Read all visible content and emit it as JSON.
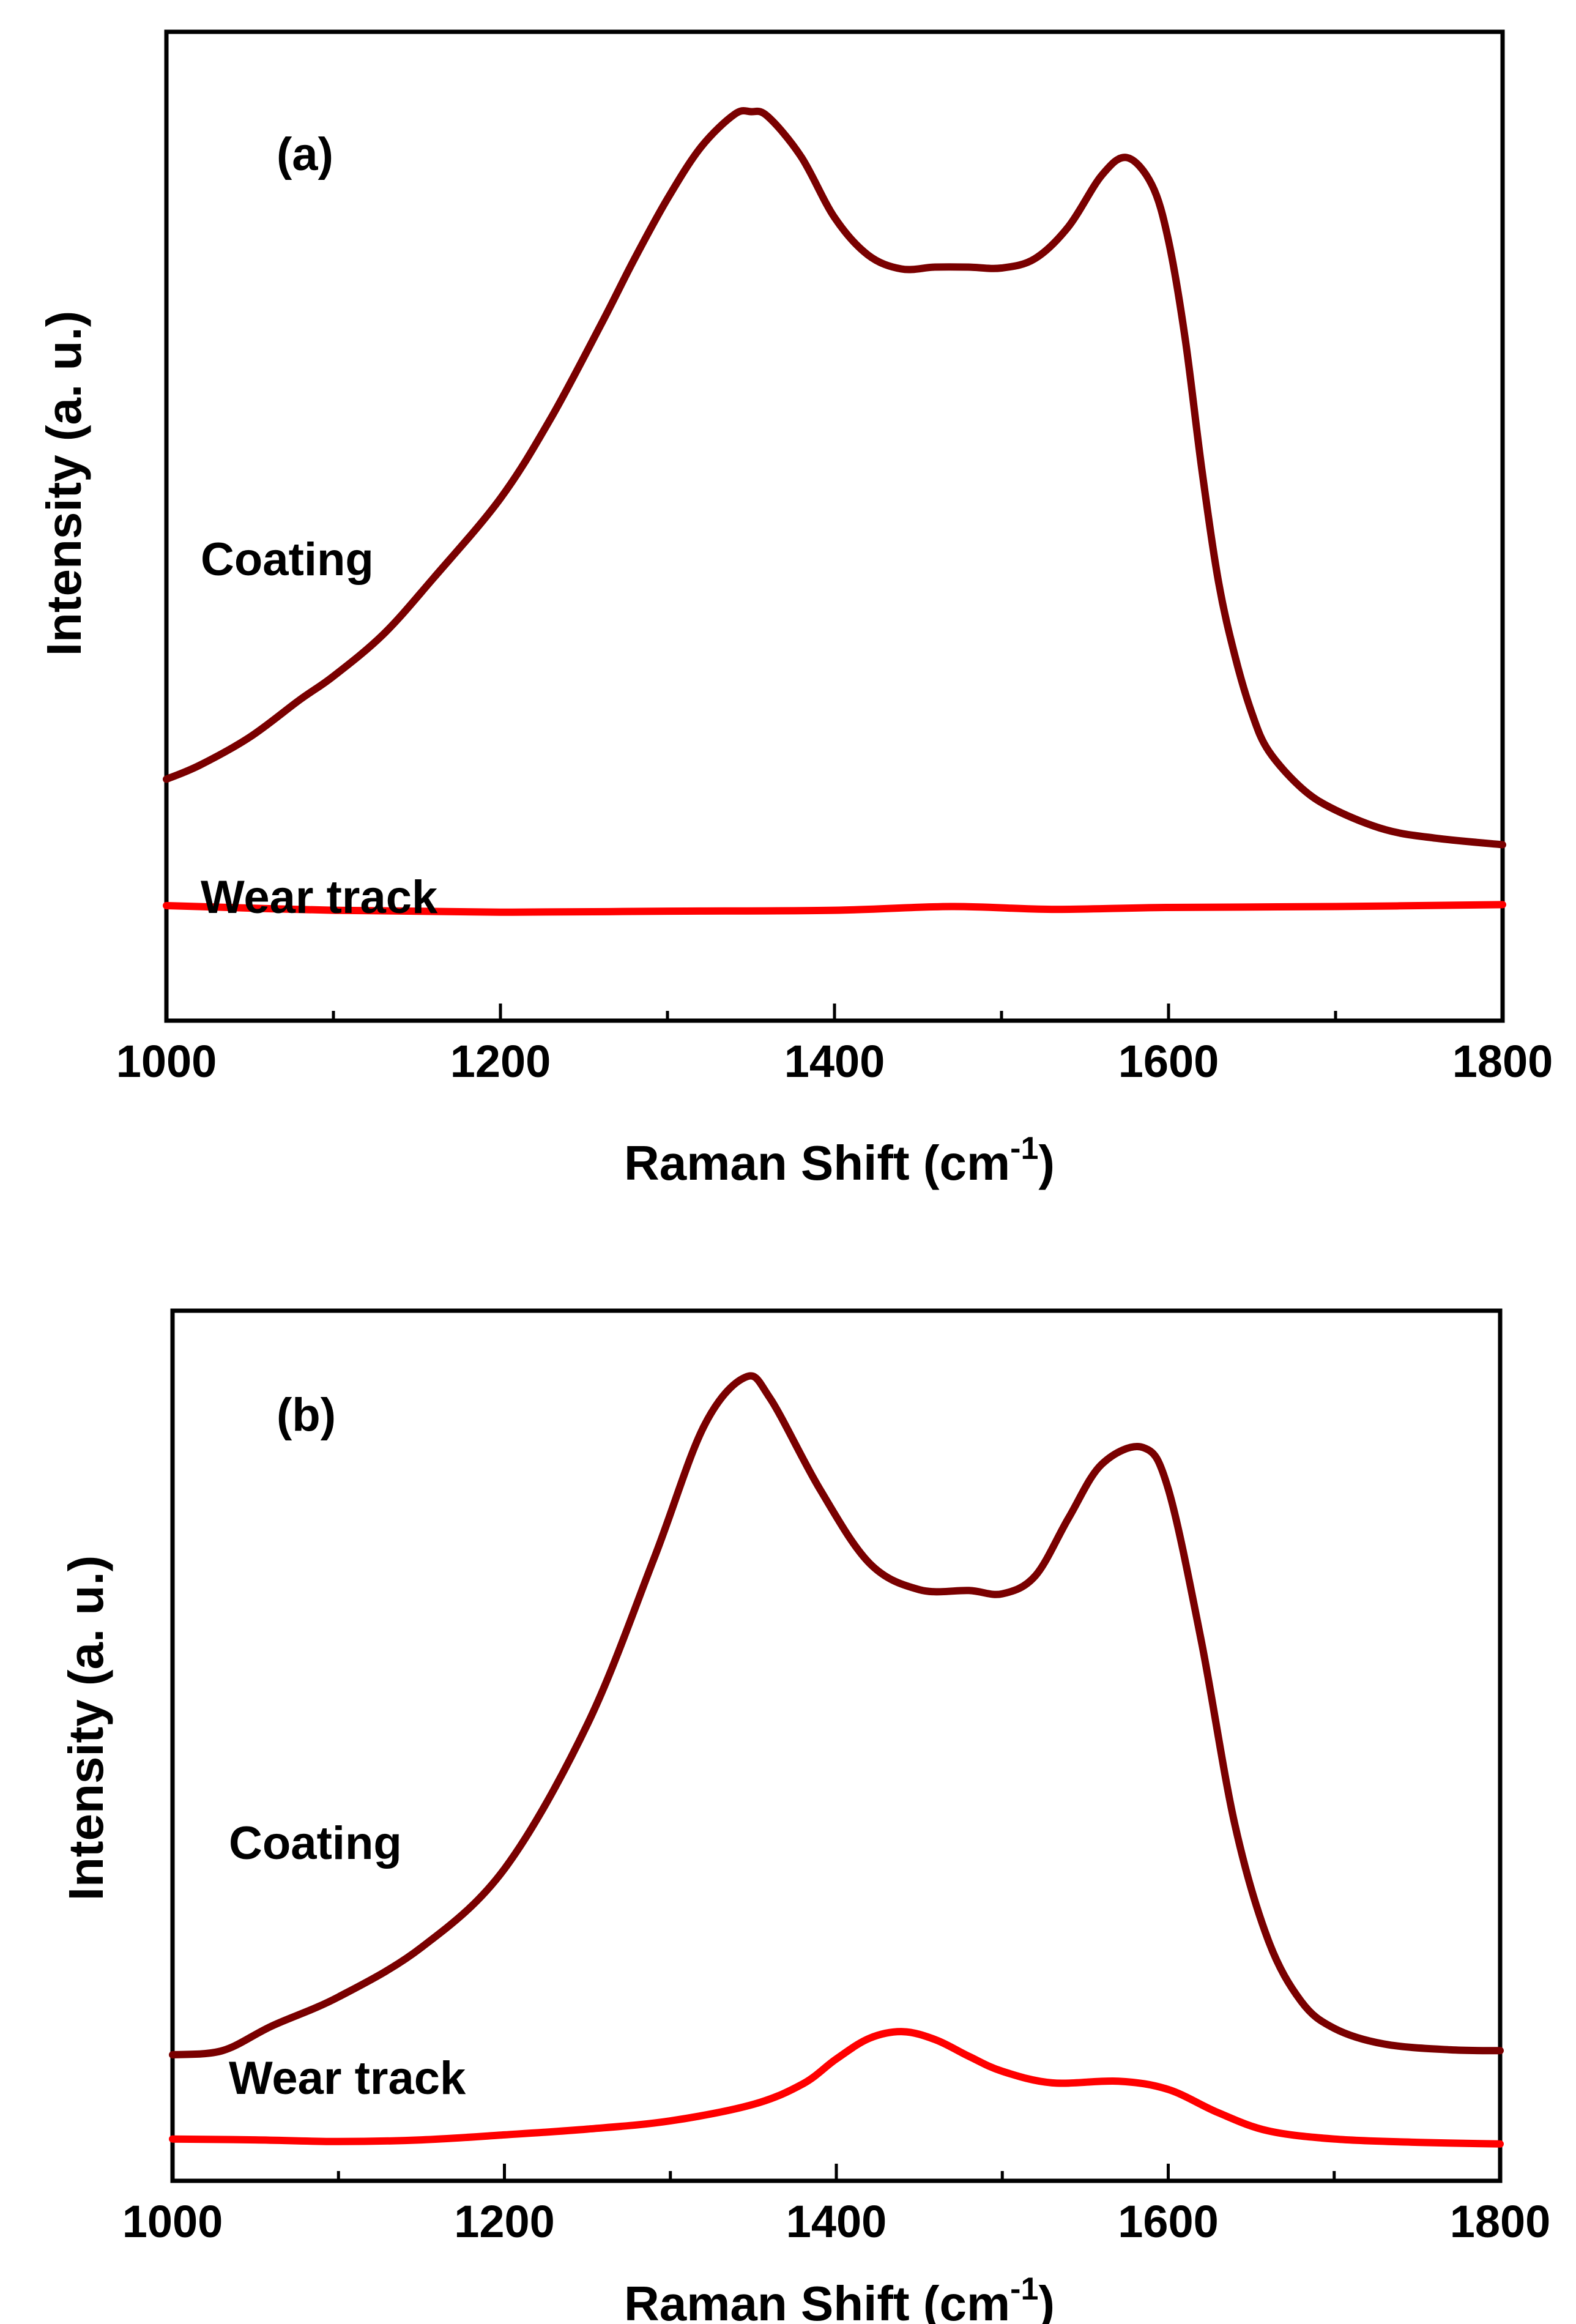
{
  "colors": {
    "coating": "#7a0000",
    "wear_track": "#ff0000",
    "axes": "#000000"
  },
  "chart_data": [
    {
      "type": "line",
      "panel_label": "(a)",
      "xlabel": "Raman Shift (cm",
      "xlabel_sup": "-1",
      "xlabel_close": ")",
      "ylabel": "Intensity (a. u.)",
      "xlim": [
        1000,
        1800
      ],
      "ylim": [
        0,
        100
      ],
      "xticks": [
        1000,
        1200,
        1400,
        1600,
        1800
      ],
      "xtick_labels": [
        "1000",
        "1200",
        "1400",
        "1600",
        "1800"
      ],
      "minor_xticks": [
        1100,
        1300,
        1500,
        1700
      ],
      "series": [
        {
          "name": "Coating",
          "color": "#7a0000",
          "x": [
            1000,
            1020,
            1050,
            1080,
            1100,
            1130,
            1160,
            1200,
            1230,
            1260,
            1280,
            1300,
            1320,
            1340,
            1350,
            1360,
            1380,
            1400,
            1420,
            1440,
            1460,
            1480,
            1500,
            1520,
            1540,
            1560,
            1575,
            1590,
            1600,
            1610,
            1620,
            1630,
            1640,
            1650,
            1660,
            1680,
            1700,
            1730,
            1760,
            1800
          ],
          "values": [
            22.0,
            23.5,
            26.5,
            30.5,
            33.0,
            37.5,
            43.5,
            52.0,
            60.5,
            70.5,
            77.5,
            84.0,
            89.5,
            93.0,
            93.3,
            92.8,
            88.5,
            82.0,
            78.0,
            76.5,
            76.7,
            76.7,
            76.6,
            77.6,
            81.0,
            86.5,
            88.4,
            85.5,
            79.5,
            69.0,
            55.0,
            43.0,
            35.0,
            29.0,
            25.0,
            21.0,
            18.7,
            16.6,
            15.7,
            15.0
          ]
        },
        {
          "name": "Wear track",
          "color": "#ff0000",
          "x": [
            1000,
            1100,
            1200,
            1300,
            1400,
            1470,
            1530,
            1600,
            1700,
            1800
          ],
          "values": [
            8.5,
            8.0,
            7.8,
            7.9,
            8.0,
            8.4,
            8.1,
            8.3,
            8.4,
            8.6
          ]
        }
      ]
    },
    {
      "type": "line",
      "panel_label": "(b)",
      "xlabel": "Raman Shift (cm",
      "xlabel_sup": "-1",
      "xlabel_close": ")",
      "ylabel": "Intensity (a. u.)",
      "xlim": [
        1000,
        1800
      ],
      "ylim": [
        0,
        100
      ],
      "xticks": [
        1000,
        1200,
        1400,
        1600,
        1800
      ],
      "xtick_labels": [
        "1000",
        "1200",
        "1400",
        "1600",
        "1800"
      ],
      "minor_xticks": [
        1100,
        1300,
        1500,
        1700
      ],
      "series": [
        {
          "name": "Coating",
          "color": "#7a0000",
          "x": [
            1000,
            1030,
            1060,
            1100,
            1150,
            1200,
            1250,
            1290,
            1320,
            1345,
            1360,
            1390,
            1420,
            1450,
            1480,
            1500,
            1520,
            1540,
            1560,
            1585,
            1600,
            1620,
            1640,
            1660,
            1680,
            1700,
            1730,
            1770,
            1800
          ],
          "values": [
            12.0,
            12.5,
            15.5,
            19.0,
            25.0,
            34.5,
            52.0,
            72.0,
            88.0,
            94.0,
            91.5,
            80.5,
            71.5,
            68.3,
            68.2,
            67.8,
            70.0,
            77.0,
            83.5,
            85.5,
            80.5,
            62.0,
            40.0,
            26.0,
            18.5,
            15.2,
            13.3,
            12.6,
            12.5
          ]
        },
        {
          "name": "Wear track",
          "color": "#ff0000",
          "x": [
            1000,
            1050,
            1100,
            1150,
            1200,
            1250,
            1300,
            1350,
            1380,
            1400,
            1420,
            1440,
            1460,
            1480,
            1500,
            1530,
            1570,
            1600,
            1630,
            1660,
            1700,
            1750,
            1800
          ],
          "values": [
            1.8,
            1.7,
            1.5,
            1.7,
            2.3,
            3.0,
            4.0,
            6.0,
            8.5,
            11.5,
            14.0,
            14.8,
            13.8,
            11.8,
            10.0,
            8.6,
            8.8,
            7.8,
            5.0,
            2.8,
            1.8,
            1.4,
            1.2
          ]
        }
      ]
    }
  ]
}
